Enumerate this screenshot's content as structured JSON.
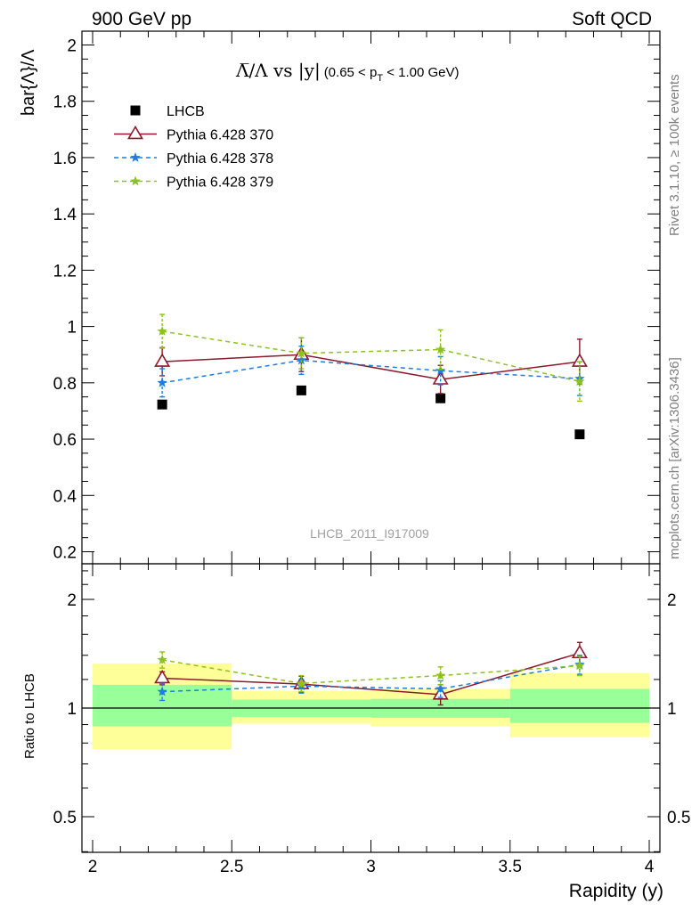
{
  "header": {
    "left": "900 GeV pp",
    "right": "Soft QCD"
  },
  "side_labels": {
    "rivet": "Rivet 3.1.10, ≥ 100k events",
    "mcplots": "mcplots.cern.ch [arXiv:1306.3436]"
  },
  "main_title": {
    "formula": "Λ̅/Λ vs |y|",
    "range": "(0.65 < p",
    "sub": "T",
    "range_end": " < 1.00 GeV)"
  },
  "analysis_id": "LHCB_2011_I917009",
  "chart_data": [
    {
      "type": "scatter",
      "panel": "main",
      "ylabel": "bar{Λ}/Λ",
      "xlabel": "Rapidity (y)",
      "xlim": [
        2,
        4
      ],
      "ylim": [
        0.15,
        2.05
      ],
      "yticks": [
        0.2,
        0.4,
        0.6,
        0.8,
        1,
        1.2,
        1.4,
        1.6,
        1.8,
        2
      ],
      "ytick_labels": [
        "0.2",
        "0.4",
        "0.6",
        "0.8",
        "1",
        "1.2",
        "1.4",
        "1.6",
        "1.8",
        "2"
      ],
      "x": [
        2.25,
        2.75,
        3.25,
        3.75
      ],
      "legend_position": "top-left",
      "series": [
        {
          "name": "LHCB",
          "style": "marker",
          "marker": "square",
          "color": "#000000",
          "values": [
            0.723,
            0.773,
            0.745,
            0.617
          ]
        },
        {
          "name": "Pythia 6.428 370",
          "style": "solid",
          "marker": "open-triangle",
          "color": "#8b1a2b",
          "values": [
            0.875,
            0.9,
            0.812,
            0.875
          ],
          "err": [
            0.05,
            0.06,
            0.05,
            0.08
          ]
        },
        {
          "name": "Pythia 6.428 378",
          "style": "dashed",
          "marker": "star",
          "color": "#1e7de0",
          "values": [
            0.8,
            0.88,
            0.843,
            0.815
          ],
          "err": [
            0.05,
            0.05,
            0.05,
            0.06
          ]
        },
        {
          "name": "Pythia 6.428 379",
          "style": "dashed",
          "marker": "star",
          "color": "#8cc21e",
          "values": [
            0.983,
            0.905,
            0.918,
            0.805
          ],
          "err": [
            0.06,
            0.055,
            0.07,
            0.07
          ]
        }
      ]
    },
    {
      "type": "scatter",
      "panel": "ratio",
      "ylabel": "Ratio to LHCB",
      "xlabel": "Rapidity (y)",
      "xlim": [
        2,
        4
      ],
      "ylim": [
        0.4,
        2.4
      ],
      "yscale": "log",
      "yticks": [
        0.5,
        1,
        2
      ],
      "ytick_labels": [
        "0.5",
        "1",
        "2"
      ],
      "xticks": [
        2,
        2.5,
        3,
        3.5,
        4
      ],
      "xtick_labels": [
        "2",
        "2.5",
        "3",
        "3.5",
        "4"
      ],
      "x": [
        2.25,
        2.75,
        3.25,
        3.75
      ],
      "bands": [
        {
          "xlo": 2.0,
          "xhi": 2.5,
          "outer": [
            0.77,
            1.33
          ],
          "inner": [
            0.89,
            1.16
          ]
        },
        {
          "xlo": 2.5,
          "xhi": 3.0,
          "outer": [
            0.905,
            1.115
          ],
          "inner": [
            0.945,
            1.055
          ]
        },
        {
          "xlo": 3.0,
          "xhi": 3.5,
          "outer": [
            0.89,
            1.13
          ],
          "inner": [
            0.94,
            1.06
          ]
        },
        {
          "xlo": 3.5,
          "xhi": 4.0,
          "outer": [
            0.83,
            1.25
          ],
          "inner": [
            0.91,
            1.13
          ]
        }
      ],
      "band_colors": {
        "outer": "#ffff99",
        "inner": "#99ff99"
      },
      "series": [
        {
          "name": "Pythia 6.428 370",
          "color": "#8b1a2b",
          "style": "solid",
          "values": [
            1.21,
            1.165,
            1.09,
            1.42
          ],
          "err": [
            0.05,
            0.06,
            0.07,
            0.1
          ]
        },
        {
          "name": "Pythia 6.428 378",
          "color": "#1e7de0",
          "style": "dashed",
          "values": [
            1.11,
            1.15,
            1.13,
            1.32
          ],
          "err": [
            0.06,
            0.05,
            0.06,
            0.08
          ]
        },
        {
          "name": "Pythia 6.428 379",
          "color": "#8cc21e",
          "style": "dashed",
          "values": [
            1.36,
            1.17,
            1.23,
            1.31
          ],
          "err": [
            0.07,
            0.06,
            0.07,
            0.08
          ]
        }
      ]
    }
  ]
}
